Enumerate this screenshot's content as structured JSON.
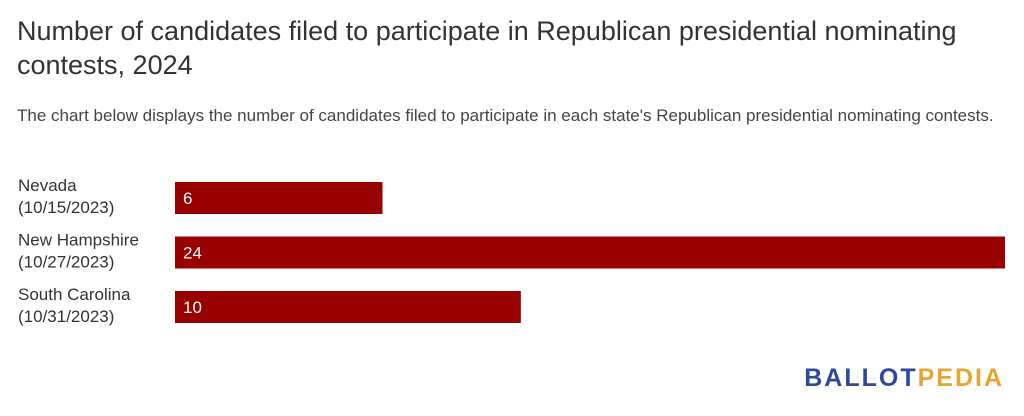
{
  "title": "Number of candidates filed to participate in Republican presidential nominating contests, 2024",
  "subtitle": "The chart below displays the number of candidates filed to participate in each state's Republican presidential nominating contests.",
  "logo": {
    "part1": "BALLOT",
    "part2": "PEDIA",
    "colors": {
      "part1": "#2d4a9a",
      "part2": "#e6a533"
    }
  },
  "chart_data": {
    "type": "bar",
    "orientation": "horizontal",
    "categories": [
      [
        "Nevada",
        "(10/15/2023)"
      ],
      [
        "New Hampshire",
        "(10/27/2023)"
      ],
      [
        "South Carolina",
        "(10/31/2023)"
      ]
    ],
    "values": [
      6,
      24,
      10
    ],
    "bar_color": "#990000",
    "xlim": [
      0,
      24
    ],
    "grid": false,
    "legend": "none"
  }
}
